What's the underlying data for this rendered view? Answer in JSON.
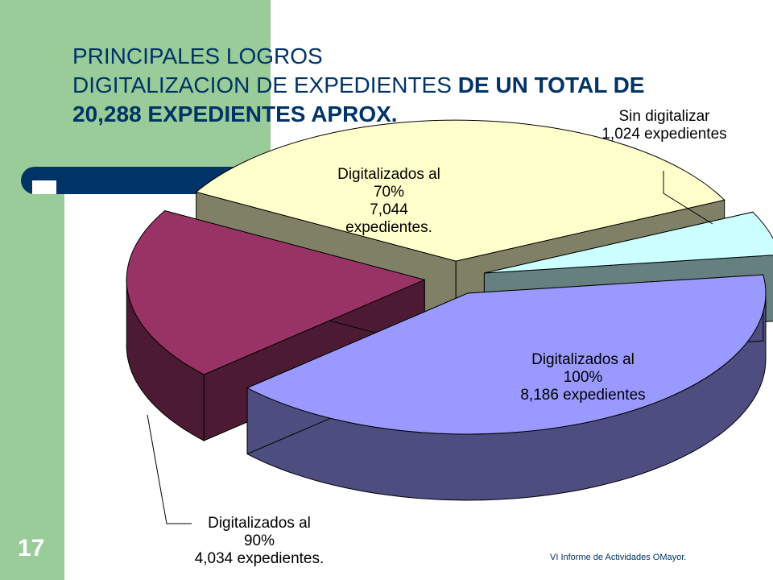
{
  "slide": {
    "title_line1": "PRINCIPALES LOGROS",
    "title_line2_normal": "DIGITALIZACION DE EXPEDIENTES ",
    "title_line2_bold": "DE UN TOTAL DE",
    "title_line3_bold": "20,288 EXPEDIENTES APROX.",
    "slide_number": "17",
    "footer": "VI Informe de Actividades OMayor."
  },
  "colors": {
    "sidebar": "#99cc99",
    "bar": "#003366",
    "title": "#003366"
  },
  "chart_data": {
    "type": "pie",
    "style": "3d-exploded",
    "total": 20288,
    "series": [
      {
        "category": "Digitalizados al 100%",
        "value": 8186,
        "label_lines": [
          "Digitalizados al",
          "100%",
          "8,186 expedientes"
        ],
        "top_color": "#9999ff",
        "side_color": "#4d4d80"
      },
      {
        "category": "Digitalizados al 90%",
        "value": 4034,
        "label_lines": [
          "Digitalizados al",
          "90%",
          "4,034 expedientes."
        ],
        "top_color": "#993366",
        "side_color": "#4d1a33"
      },
      {
        "category": "Digitalizados al 70%",
        "value": 7044,
        "label_lines": [
          "Digitalizados al",
          "70%",
          "7,044",
          "expedientes."
        ],
        "top_color": "#ffffcc",
        "side_color": "#808066"
      },
      {
        "category": "Sin digitalizar",
        "value": 1024,
        "label_lines": [
          "Sin digitalizar",
          "1,024 expedientes"
        ],
        "top_color": "#ccffff",
        "side_color": "#668080"
      }
    ]
  }
}
